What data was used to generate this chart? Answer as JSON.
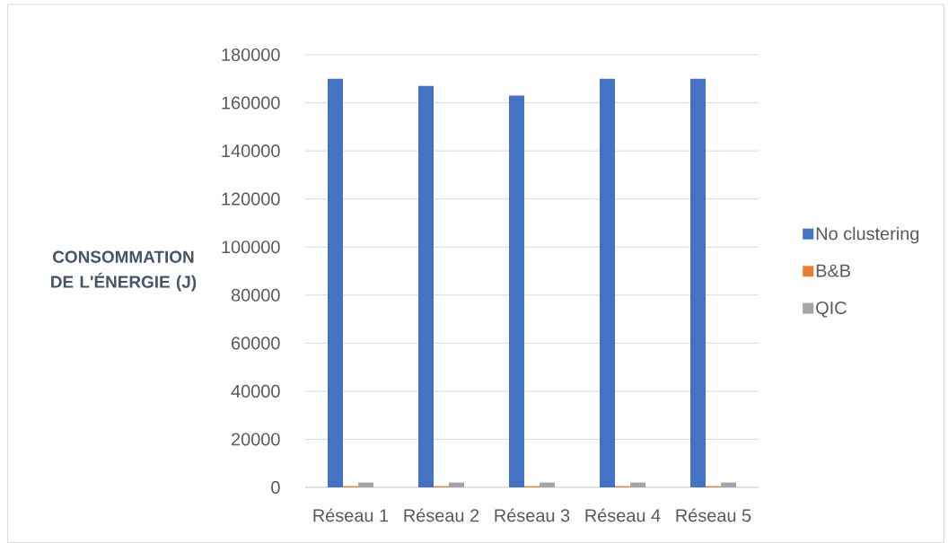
{
  "chart_data": {
    "type": "bar",
    "categories": [
      "Réseau 1",
      "Réseau 2",
      "Réseau 3",
      "Réseau 4",
      "Réseau 5"
    ],
    "series": [
      {
        "name": "No clustering",
        "color": "#4472c4",
        "values": [
          170000,
          167000,
          163000,
          170000,
          170000
        ]
      },
      {
        "name": "B&B",
        "color": "#ed7d31",
        "values": [
          500,
          500,
          500,
          500,
          500
        ]
      },
      {
        "name": "QIC",
        "color": "#a5a5a5",
        "values": [
          2000,
          2000,
          2000,
          2000,
          2000
        ]
      }
    ],
    "ylabel": "CONSOMMATION DE L'ÉNERGIE (J)",
    "ylim": [
      0,
      180000
    ],
    "yticks": [
      0,
      20000,
      40000,
      60000,
      80000,
      100000,
      120000,
      140000,
      160000,
      180000
    ],
    "grid": "y",
    "legend": "right"
  }
}
